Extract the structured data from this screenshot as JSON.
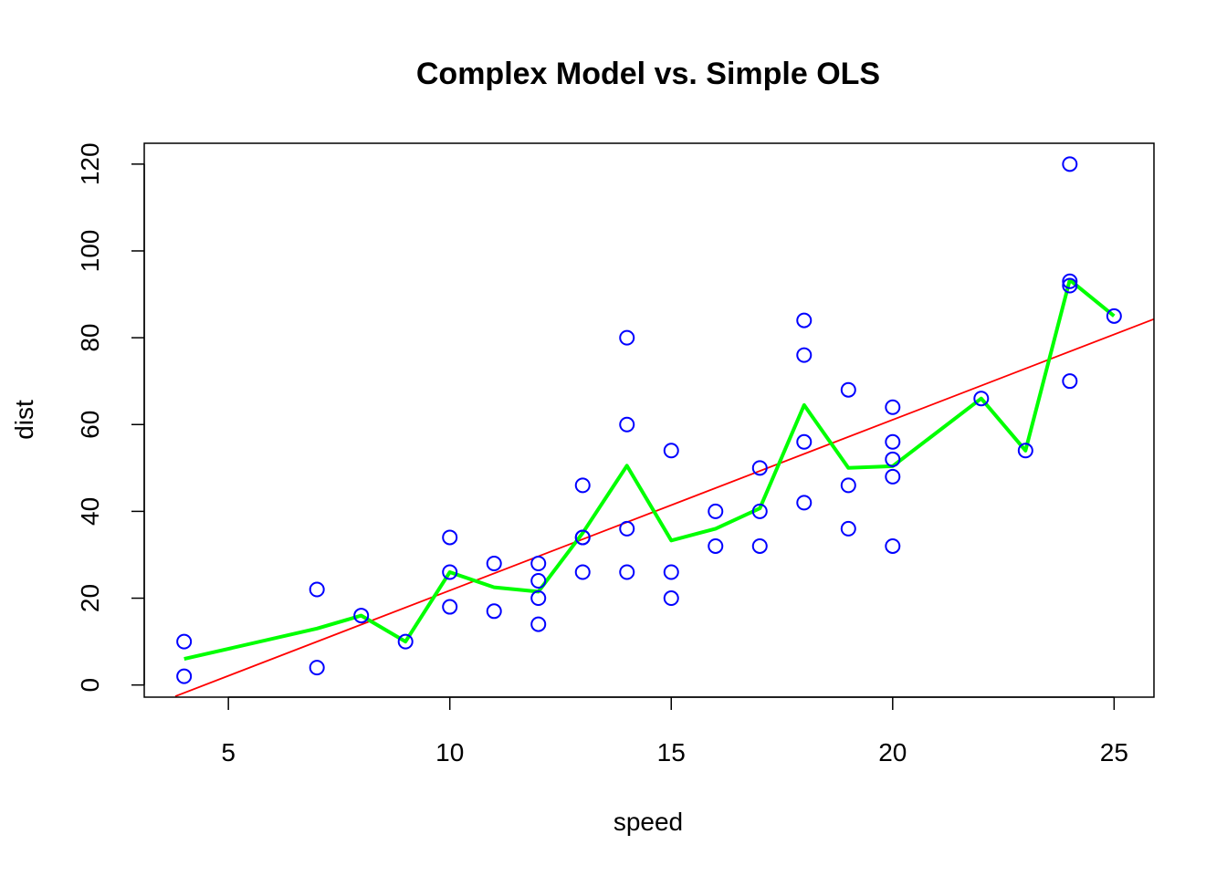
{
  "chart_data": {
    "type": "scatter",
    "title": "Complex Model vs. Simple OLS",
    "xlabel": "speed",
    "ylabel": "dist",
    "xlim": [
      3.1,
      25.9
    ],
    "ylim": [
      -2.8,
      124.8
    ],
    "x_ticks": [
      5,
      10,
      15,
      20,
      25
    ],
    "y_ticks": [
      0,
      20,
      40,
      60,
      80,
      100,
      120
    ],
    "grid": false,
    "points_color": "#0000FF",
    "ols_color": "#FF0000",
    "model_color": "#00FF00",
    "points": {
      "x": [
        4,
        4,
        7,
        7,
        8,
        9,
        10,
        10,
        10,
        11,
        11,
        12,
        12,
        12,
        12,
        13,
        13,
        13,
        13,
        14,
        14,
        14,
        14,
        15,
        15,
        15,
        16,
        16,
        17,
        17,
        17,
        18,
        18,
        18,
        18,
        19,
        19,
        19,
        20,
        20,
        20,
        20,
        20,
        22,
        23,
        24,
        24,
        24,
        24,
        25
      ],
      "y": [
        2,
        10,
        4,
        22,
        16,
        10,
        18,
        26,
        34,
        17,
        28,
        14,
        20,
        24,
        28,
        26,
        34,
        34,
        46,
        26,
        36,
        60,
        80,
        20,
        26,
        54,
        32,
        40,
        32,
        40,
        50,
        42,
        56,
        76,
        84,
        36,
        46,
        68,
        32,
        48,
        52,
        56,
        64,
        66,
        54,
        70,
        92,
        93,
        120,
        85
      ]
    },
    "series": [
      {
        "type": "line",
        "x": [
          3.8,
          25.9
        ],
        "y": [
          -2.6,
          84.3
        ]
      },
      {
        "type": "line",
        "x": [
          4,
          7,
          8,
          9,
          10,
          11,
          12,
          13,
          14,
          15,
          16,
          17,
          18,
          19,
          20,
          22,
          23,
          24,
          25
        ],
        "y": [
          6,
          13,
          16,
          10,
          26,
          22.5,
          21.5,
          35,
          50.5,
          33.3,
          36,
          40.7,
          64.5,
          50,
          50.4,
          66,
          54,
          93.3,
          85
        ]
      }
    ]
  }
}
